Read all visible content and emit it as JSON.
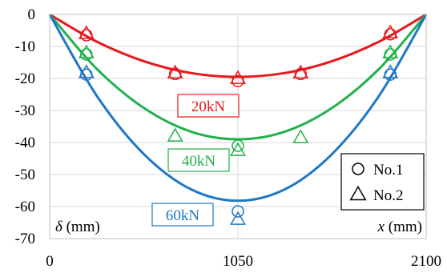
{
  "chart_data": {
    "type": "line",
    "xlim": [
      0,
      2100
    ],
    "ylim": [
      -70,
      0
    ],
    "x_ticks": [
      {
        "value": 0,
        "label": "0"
      },
      {
        "value": 1050,
        "label": "1050"
      },
      {
        "value": 2100,
        "label": "2100"
      }
    ],
    "y_ticks": [
      {
        "value": 0,
        "label": "0"
      },
      {
        "value": -10,
        "label": "-10"
      },
      {
        "value": -20,
        "label": "-20"
      },
      {
        "value": -30,
        "label": "-30"
      },
      {
        "value": -40,
        "label": "-40"
      },
      {
        "value": -50,
        "label": "-50"
      },
      {
        "value": -60,
        "label": "-60"
      },
      {
        "value": -70,
        "label": "-70"
      }
    ],
    "ylabel": {
      "symbol": "δ",
      "unit": " (mm)"
    },
    "xlabel": {
      "symbol": "x",
      "unit": " (mm)"
    },
    "grid": true,
    "legend": {
      "position": "bottom-right",
      "entries": [
        {
          "marker": "circle",
          "label": "No.1"
        },
        {
          "marker": "triangle",
          "label": "No.2"
        }
      ]
    },
    "series": [
      {
        "load": "20kN",
        "color": "#e8191e",
        "curve": {
          "x": [
            0,
            262.5,
            525,
            787.5,
            1050,
            1312.5,
            1575,
            1837.5,
            2100
          ],
          "y": [
            0,
            -8.5,
            -14.6,
            -18.3,
            -19.5,
            -18.3,
            -14.6,
            -8.5,
            0
          ]
        },
        "no1": {
          "x": [
            205,
            700,
            1050,
            1400,
            1900
          ],
          "y": [
            -6.5,
            -18.6,
            -20.8,
            -18.6,
            -6.2
          ]
        },
        "no2": {
          "x": [
            205,
            700,
            1050,
            1400,
            1900
          ],
          "y": [
            -6.0,
            -18.3,
            -20.0,
            -18.3,
            -5.8
          ]
        }
      },
      {
        "load": "40kN",
        "color": "#22b14c",
        "curve": {
          "x": [
            0,
            262.5,
            525,
            787.5,
            1050,
            1312.5,
            1575,
            1837.5,
            2100
          ],
          "y": [
            0,
            -17.0,
            -29.2,
            -36.6,
            -39.0,
            -36.6,
            -29.2,
            -17.0,
            0
          ]
        },
        "no1": {
          "x": [
            205,
            1050,
            1900
          ],
          "y": [
            -12.5,
            -41.0,
            -12.5
          ]
        },
        "no2": {
          "x": [
            205,
            700,
            1050,
            1400,
            1900
          ],
          "y": [
            -12.0,
            -38.0,
            -42.5,
            -38.5,
            -12.0
          ]
        }
      },
      {
        "load": "60kN",
        "color": "#1f78c4",
        "curve": {
          "x": [
            0,
            262.5,
            525,
            787.5,
            1050,
            1312.5,
            1575,
            1837.5,
            2100
          ],
          "y": [
            0,
            -25.4,
            -43.6,
            -54.6,
            -58.2,
            -54.6,
            -43.6,
            -25.4,
            0
          ]
        },
        "no1": {
          "x": [
            205,
            1050,
            1900
          ],
          "y": [
            -18.8,
            -61.5,
            -18.8
          ]
        },
        "no2": {
          "x": [
            205,
            1050,
            1900
          ],
          "y": [
            -18.2,
            -64.0,
            -18.2
          ]
        }
      }
    ]
  }
}
